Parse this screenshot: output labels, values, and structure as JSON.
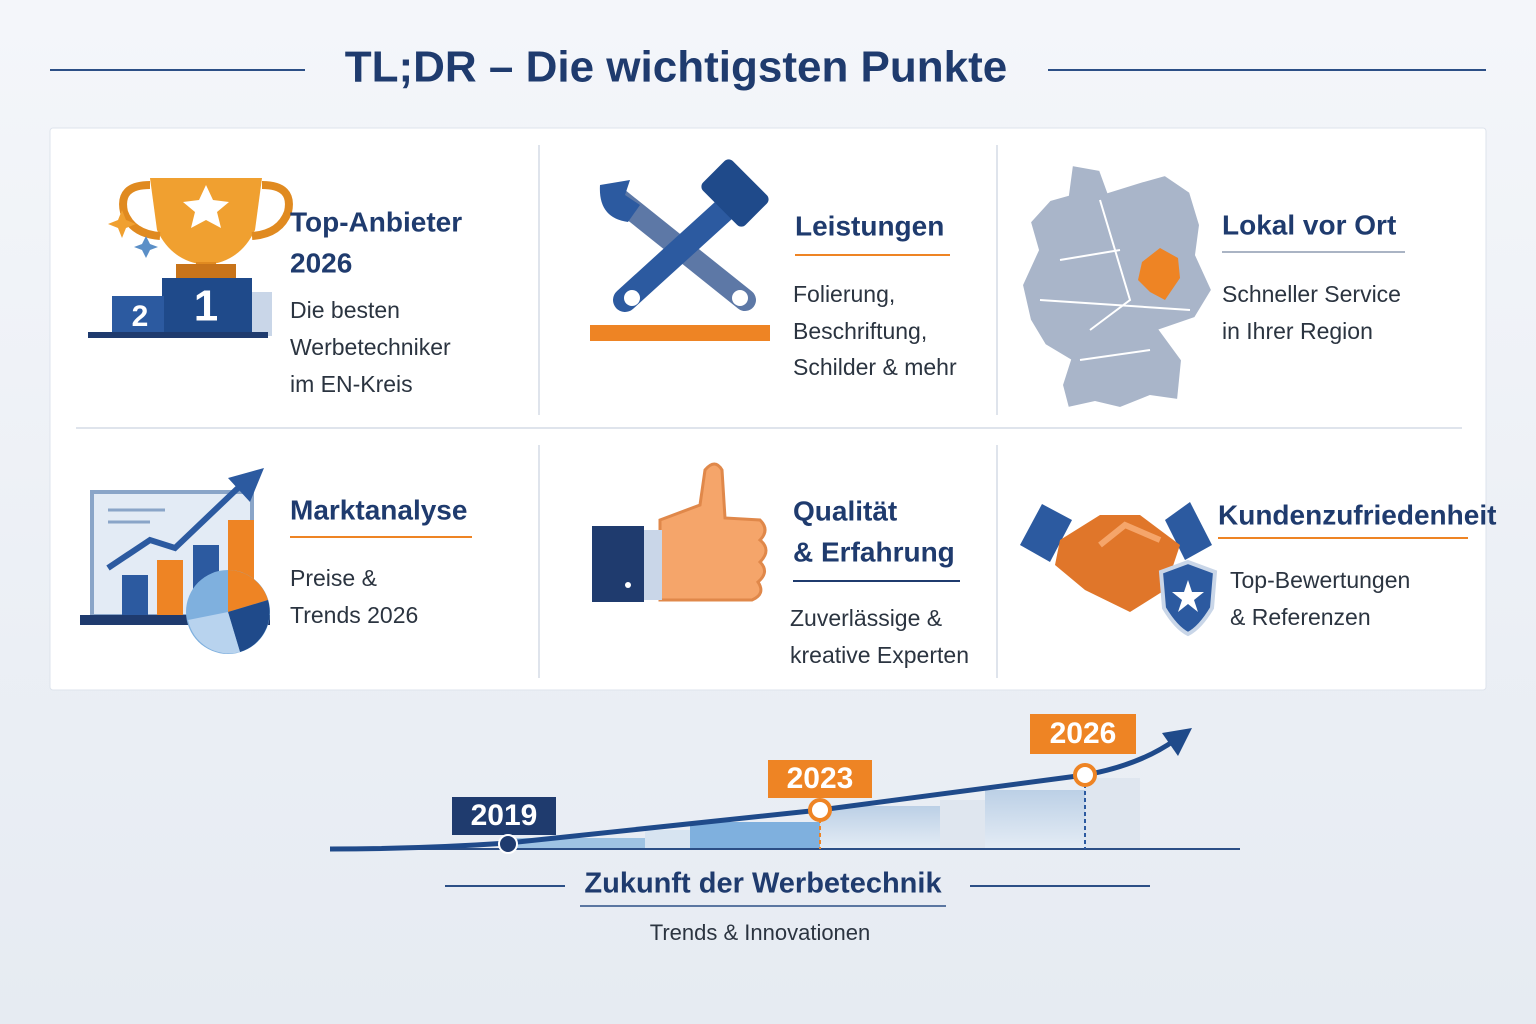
{
  "header": {
    "title": "TL;DR – Die wichtigsten Punkte"
  },
  "cards": [
    {
      "title": [
        "Top-Anbieter",
        "2026"
      ],
      "text": [
        "Die besten",
        "Werbetechniker",
        "im EN-Kreis"
      ],
      "badges": [
        "2",
        "1"
      ]
    },
    {
      "title": [
        "Leistungen"
      ],
      "text": [
        "Folierung,",
        "Beschriftung,",
        "Schilder & mehr"
      ]
    },
    {
      "title": [
        "Lokal vor Ort"
      ],
      "text": [
        "Schneller Service",
        "in Ihrer Region"
      ]
    },
    {
      "title": [
        "Marktanalyse"
      ],
      "text": [
        "Preise &",
        "Trends 2026"
      ]
    },
    {
      "title": [
        "Qualität",
        "& Erfahrung"
      ],
      "text": [
        "Zuverlässige &",
        "kreative Experten"
      ]
    },
    {
      "title": [
        "Kundenzufriedenheit"
      ],
      "text": [
        "Top-Bewertungen",
        "& Referenzen"
      ]
    }
  ],
  "timeline": {
    "years": [
      "2019",
      "2023",
      "2026"
    ],
    "title": "Zukunft der Werbetechnik",
    "subtitle": "Trends & Innovationen"
  }
}
